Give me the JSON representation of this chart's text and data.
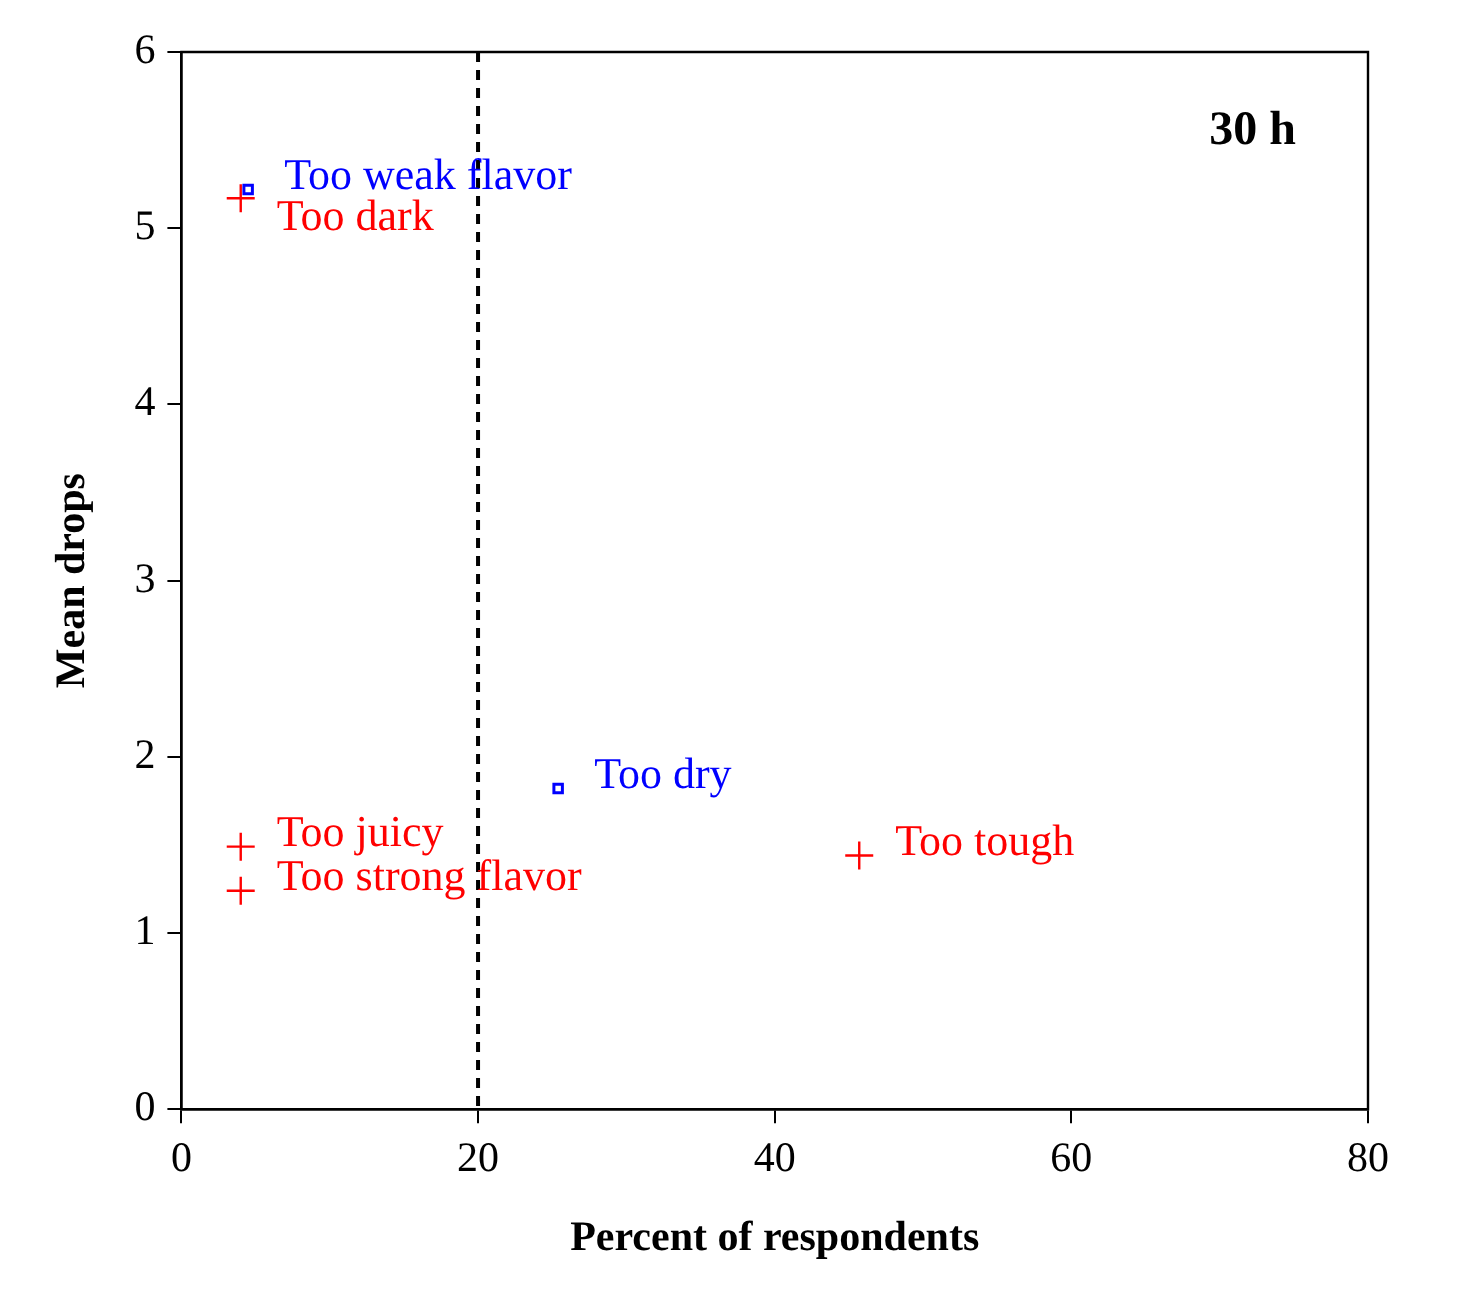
{
  "chart_data": {
    "type": "scatter",
    "xlabel": "Percent of respondents",
    "ylabel": "Mean drops",
    "xlim": [
      0,
      80
    ],
    "xticks": [
      0,
      20,
      40,
      60,
      80
    ],
    "ylim": [
      0,
      6
    ],
    "yticks": [
      0,
      1,
      2,
      3,
      4,
      5,
      6
    ],
    "grid": false,
    "legend": false,
    "series": [
      {
        "color": "#0000ff",
        "marker": "square",
        "x": [
          4.5,
          25.4
        ],
        "values": [
          5.22,
          1.82
        ]
      },
      {
        "color": "#ff0000",
        "marker": "cross",
        "x": [
          4,
          4,
          4,
          45.7
        ],
        "values": [
          5.17,
          1.49,
          1.24,
          1.44
        ]
      }
    ],
    "ref_lines": [
      {
        "axis": "x",
        "value": 20,
        "line_style": "dashed",
        "color": "#000000"
      }
    ],
    "annotations": [
      {
        "text": "Too weak flavor",
        "x": 4.5,
        "y": 5.22
      },
      {
        "text": "Too dark",
        "x": 4,
        "y": 5.17
      },
      {
        "text": "Too juicy",
        "x": 4,
        "y": 1.49
      },
      {
        "text": "Too strong flavor",
        "x": 4,
        "y": 1.24
      },
      {
        "text": "Too dry",
        "x": 25.4,
        "y": 1.82
      },
      {
        "text": "Too tough",
        "x": 45.7,
        "y": 1.44
      },
      "30 h"
    ]
  }
}
